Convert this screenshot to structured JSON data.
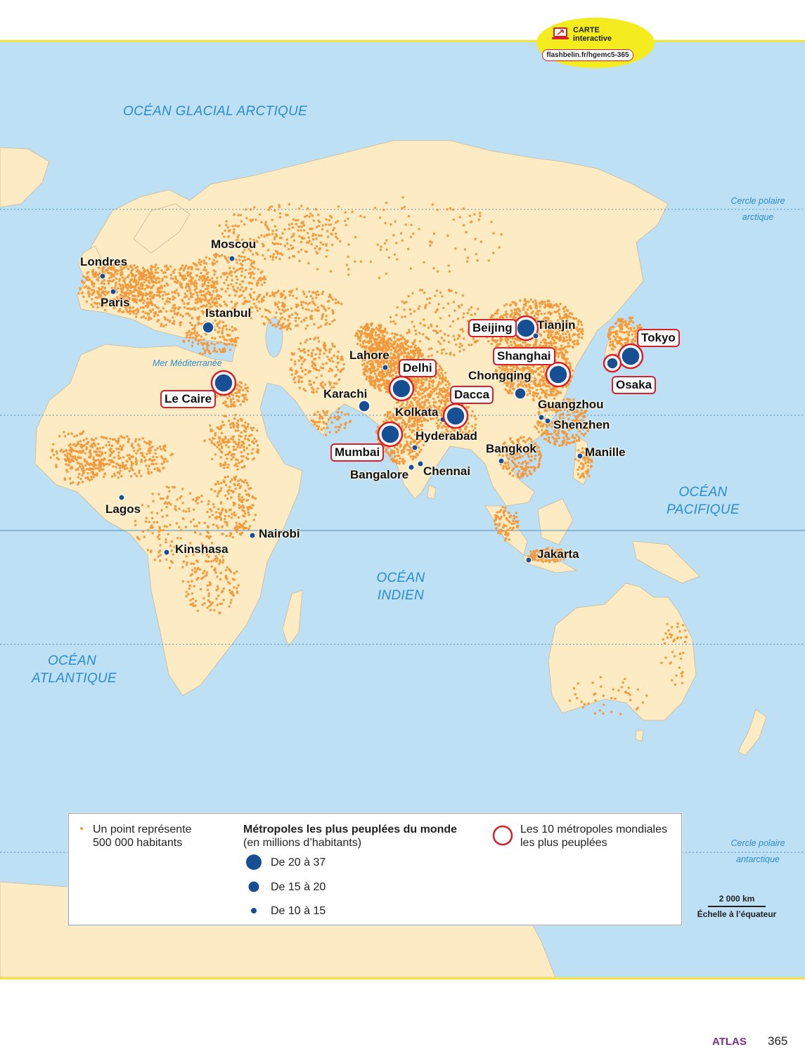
{
  "badge": {
    "title": "CARTE",
    "subtitle": "interactive",
    "url": "flashbelin.fr/hgemc5-365"
  },
  "oceans": {
    "arctic": "OCÉAN GLACIAL ARCTIQUE",
    "atlantic": [
      "OCÉAN",
      "ATLANTIQUE"
    ],
    "indian": [
      "OCÉAN",
      "INDIEN"
    ],
    "pacific": [
      "OCÉAN",
      "PACIFIQUE"
    ],
    "mediterranean": "Mer Méditerranée"
  },
  "circles": {
    "arctic": [
      "Cercle polaire",
      "arctique"
    ],
    "antarctic": [
      "Cercle polaire",
      "antarctique"
    ]
  },
  "cities": [
    {
      "name": "Moscou",
      "size": "small",
      "top10": false
    },
    {
      "name": "Londres",
      "size": "small",
      "top10": false
    },
    {
      "name": "Paris",
      "size": "small",
      "top10": false
    },
    {
      "name": "Istanbul",
      "size": "medium",
      "top10": false
    },
    {
      "name": "Le Caire",
      "size": "large",
      "top10": true
    },
    {
      "name": "Lagos",
      "size": "small",
      "top10": false
    },
    {
      "name": "Kinshasa",
      "size": "small",
      "top10": false
    },
    {
      "name": "Nairobi",
      "size": "small",
      "top10": false
    },
    {
      "name": "Lahore",
      "size": "small",
      "top10": false
    },
    {
      "name": "Karachi",
      "size": "medium",
      "top10": false
    },
    {
      "name": "Delhi",
      "size": "large",
      "top10": true
    },
    {
      "name": "Mumbai",
      "size": "large",
      "top10": true
    },
    {
      "name": "Kolkata",
      "size": "small",
      "top10": false
    },
    {
      "name": "Dacca",
      "size": "large",
      "top10": true
    },
    {
      "name": "Hyderabad",
      "size": "small",
      "top10": false
    },
    {
      "name": "Bangalore",
      "size": "small",
      "top10": false
    },
    {
      "name": "Chennai",
      "size": "small",
      "top10": false
    },
    {
      "name": "Beijing",
      "size": "large",
      "top10": true
    },
    {
      "name": "Tianjin",
      "size": "small",
      "top10": false
    },
    {
      "name": "Shanghai",
      "size": "large",
      "top10": true
    },
    {
      "name": "Chongqing",
      "size": "medium",
      "top10": false
    },
    {
      "name": "Guangzhou",
      "size": "small",
      "top10": false
    },
    {
      "name": "Shenzhen",
      "size": "small",
      "top10": false
    },
    {
      "name": "Tokyo",
      "size": "large",
      "top10": true
    },
    {
      "name": "Osaka",
      "size": "medium",
      "top10": true
    },
    {
      "name": "Bangkok",
      "size": "small",
      "top10": false
    },
    {
      "name": "Manille",
      "size": "small",
      "top10": false
    },
    {
      "name": "Jakarta",
      "size": "small",
      "top10": false
    }
  ],
  "legend": {
    "dot": [
      "Un point représente",
      "500 000 habitants"
    ],
    "metro_title": "Métropoles les plus peuplées du monde",
    "metro_sub": "(en millions d’habitants)",
    "classes": [
      "De 20 à 37",
      "De 15 à 20",
      "De 10 à 15"
    ],
    "top10": [
      "Les 10 métropoles mondiales",
      "les plus peuplées"
    ]
  },
  "scale": {
    "value": "2 000 km",
    "caption": "Échelle à l’équateur"
  },
  "footer": {
    "section": "ATLAS",
    "page": "365"
  },
  "colors": {
    "ocean": "#bde0f5",
    "land": "#fdebc4",
    "population_dot": "#f39a3d",
    "city": "#174f94",
    "top10_ring": "#d8202b",
    "ocean_text": "#2b8ccf",
    "frame": "#f2e63a"
  }
}
